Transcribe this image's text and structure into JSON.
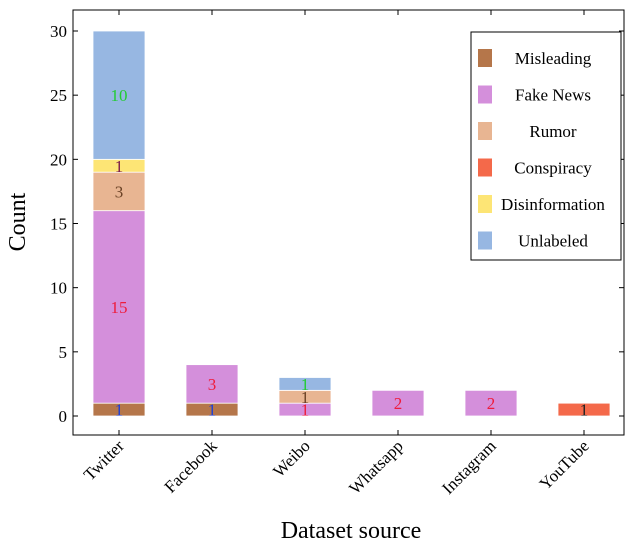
{
  "chart_data": {
    "type": "bar",
    "stacked": true,
    "xlabel": "Dataset source",
    "ylabel": "Count",
    "ylim": [
      0,
      31.5
    ],
    "yticks": [
      0,
      5,
      10,
      15,
      20,
      25,
      30
    ],
    "grid": false,
    "legend_position": "top-right",
    "categories": [
      "Twitter",
      "Facebook",
      "Weibo",
      "Whatsapp",
      "Instagram",
      "YouTube"
    ],
    "series": [
      {
        "name": "Misleading",
        "color": "#b5764a",
        "label_color": "#1f3fd6",
        "values": [
          1,
          1,
          0,
          0,
          0,
          0
        ]
      },
      {
        "name": "Fake News",
        "color": "#d48fdb",
        "label_color": "#ee1c3c",
        "values": [
          15,
          3,
          1,
          2,
          2,
          0
        ]
      },
      {
        "name": "Rumor",
        "color": "#e8b592",
        "label_color": "#6b4226",
        "values": [
          3,
          0,
          1,
          0,
          0,
          0
        ]
      },
      {
        "name": "Conspiracy",
        "color": "#f4694a",
        "label_color": "#222222",
        "values": [
          0,
          0,
          0,
          0,
          0,
          1
        ]
      },
      {
        "name": "Disinformation",
        "color": "#fde575",
        "label_color": "#7a1a4a",
        "values": [
          1,
          0,
          0,
          0,
          0,
          0
        ]
      },
      {
        "name": "Unlabeled",
        "color": "#97b7e2",
        "label_color": "#22cc33",
        "values": [
          10,
          0,
          1,
          0,
          0,
          0
        ]
      }
    ]
  }
}
